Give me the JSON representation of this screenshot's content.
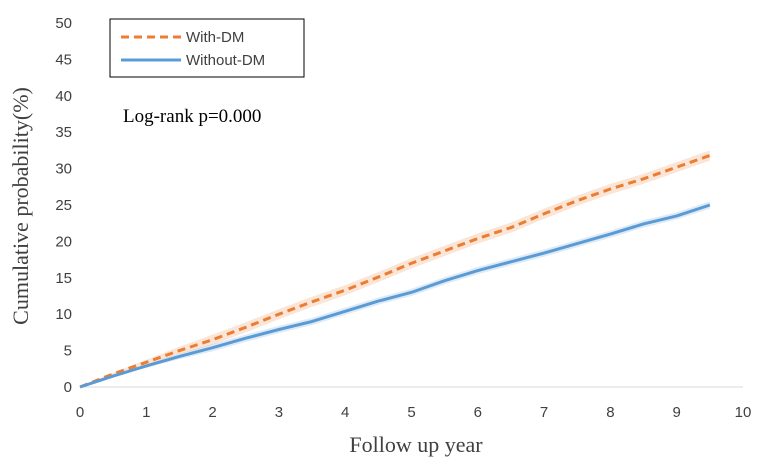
{
  "chart_data": {
    "type": "line",
    "title": "",
    "xlabel": "Follow up year",
    "ylabel": "Cumulative probability(%)",
    "xlim": [
      0,
      10
    ],
    "ylim": [
      0,
      50
    ],
    "xticks": [
      0,
      1,
      2,
      3,
      4,
      5,
      6,
      7,
      8,
      9,
      10
    ],
    "yticks": [
      0,
      5,
      10,
      15,
      20,
      25,
      30,
      35,
      40,
      45,
      50
    ],
    "grid": false,
    "legend_position": "top-left",
    "annotation": "Log-rank p=0.000",
    "series": [
      {
        "name": "With-DM",
        "color": "#ED7D31",
        "style": "dashed",
        "x": [
          0,
          0.5,
          1,
          1.5,
          2,
          2.5,
          3,
          3.5,
          4,
          4.5,
          5,
          5.5,
          6,
          6.5,
          7,
          7.5,
          8,
          8.5,
          9,
          9.5
        ],
        "y": [
          0,
          1.8,
          3.4,
          5.0,
          6.5,
          8.2,
          10.0,
          11.7,
          13.3,
          15.1,
          17.0,
          18.7,
          20.4,
          21.9,
          23.8,
          25.6,
          27.2,
          28.6,
          30.2,
          31.8
        ],
        "band": 0.7
      },
      {
        "name": "Without-DM",
        "color": "#5B9BD5",
        "style": "solid",
        "x": [
          0,
          0.5,
          1,
          1.5,
          2,
          2.5,
          3,
          3.5,
          4,
          4.5,
          5,
          5.5,
          6,
          6.5,
          7,
          7.5,
          8,
          8.5,
          9,
          9.5
        ],
        "y": [
          0,
          1.5,
          2.9,
          4.2,
          5.4,
          6.7,
          7.9,
          9.0,
          10.4,
          11.8,
          13.0,
          14.6,
          16.0,
          17.2,
          18.4,
          19.7,
          21.0,
          22.4,
          23.5,
          25.0
        ],
        "band": 0.5
      }
    ]
  }
}
